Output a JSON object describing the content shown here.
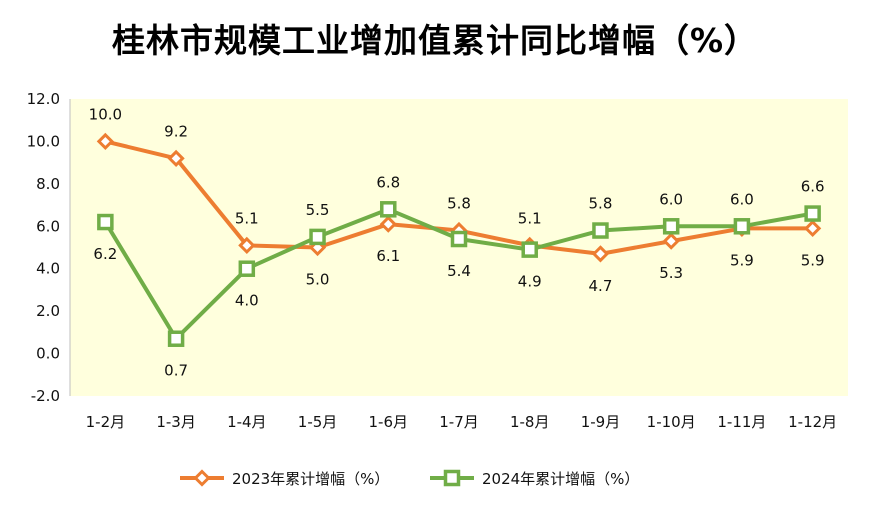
{
  "chart_data": {
    "type": "line",
    "title": "桂林市规模工业增加值累计同比增幅（%）",
    "categories": [
      "1-2月",
      "1-3月",
      "1-4月",
      "1-5月",
      "1-6月",
      "1-7月",
      "1-8月",
      "1-9月",
      "1-10月",
      "1-11月",
      "1-12月"
    ],
    "series": [
      {
        "name": "2023年累计增幅（%）",
        "color": "#ED7D31",
        "marker": "diamond",
        "values": [
          10.0,
          9.2,
          5.1,
          5.0,
          6.1,
          5.8,
          5.1,
          4.7,
          5.3,
          5.9,
          5.9
        ],
        "labels": [
          "10.0",
          "9.2",
          "5.1",
          "5.0",
          "6.1",
          "5.8",
          "5.1",
          "4.7",
          "5.3",
          "5.9",
          "5.9"
        ]
      },
      {
        "name": "2024年累计增幅（%）",
        "color": "#70AD47",
        "marker": "square",
        "values": [
          6.2,
          0.7,
          4.0,
          5.5,
          6.8,
          5.4,
          4.9,
          5.8,
          6.0,
          6.0,
          6.6
        ],
        "labels": [
          "6.2",
          "0.7",
          "4.0",
          "5.5",
          "6.8",
          "5.4",
          "4.9",
          "5.8",
          "6.0",
          "6.0",
          "6.6"
        ]
      }
    ],
    "ylim": [
      -2.0,
      12.0
    ],
    "yticks": [
      "12.0",
      "10.0",
      "8.0",
      "6.0",
      "4.0",
      "2.0",
      "0.0",
      "-2.0"
    ],
    "ytick_values": [
      12,
      10,
      8,
      6,
      4,
      2,
      0,
      -2
    ],
    "grid": false,
    "plot_background": "#FFFFDD",
    "legend_position": "bottom"
  }
}
